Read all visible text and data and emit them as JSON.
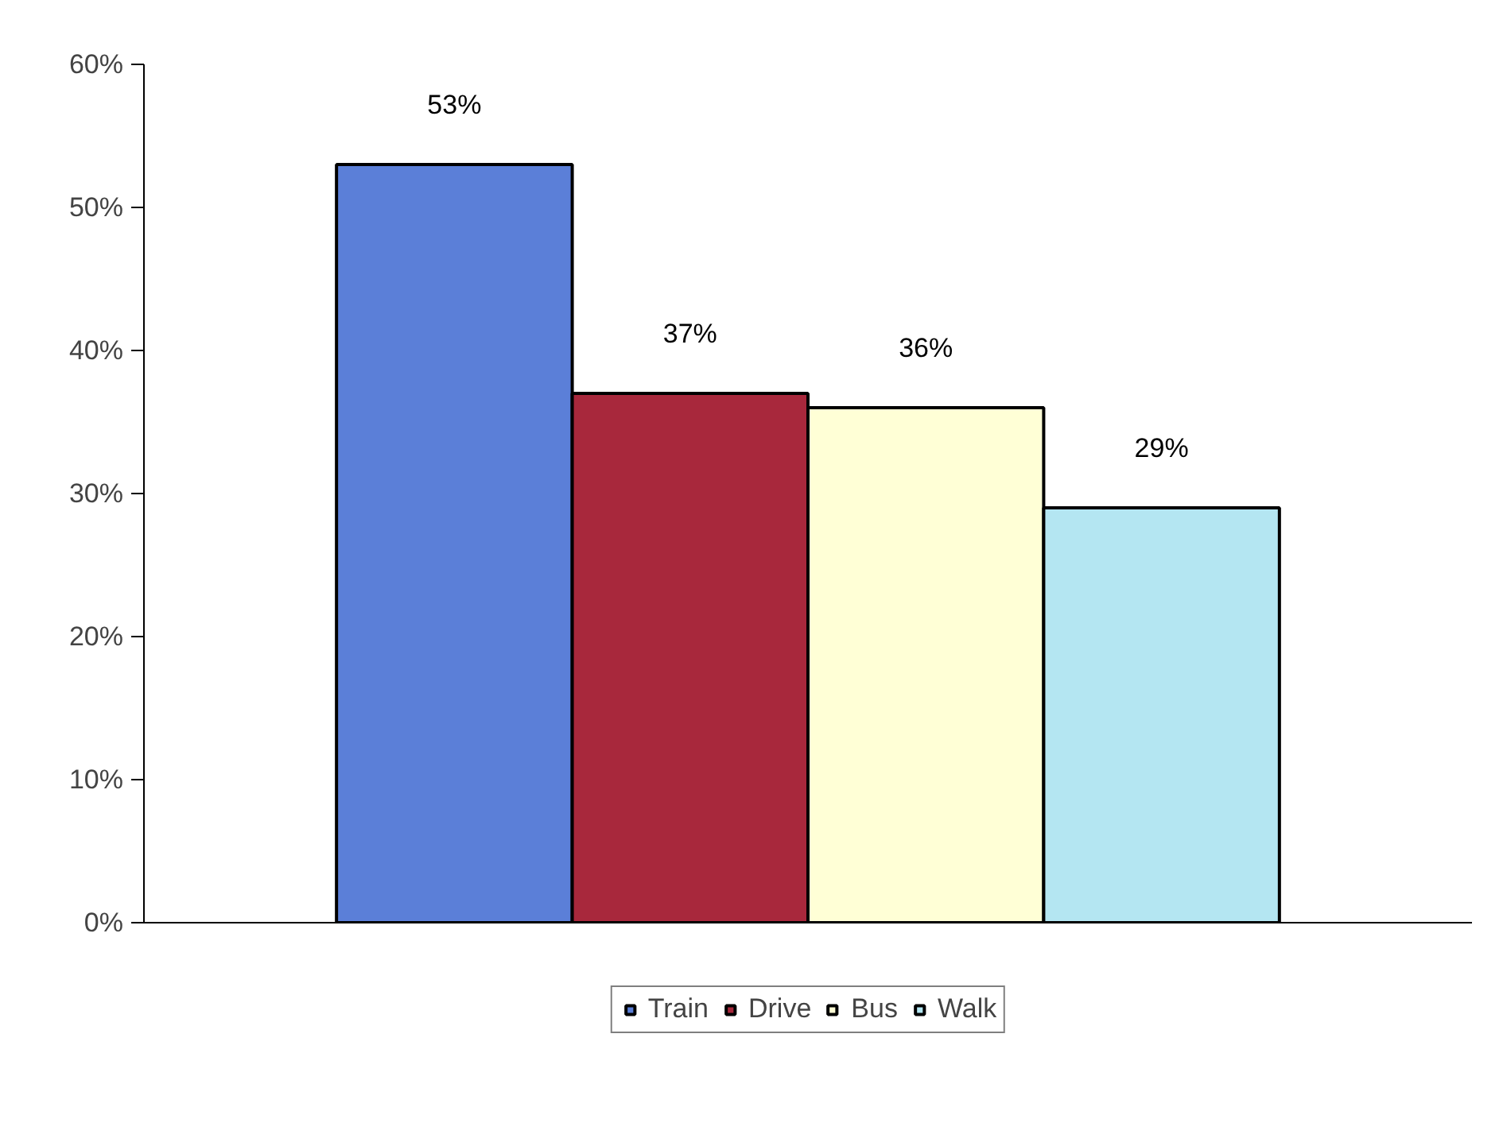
{
  "chart_data": {
    "type": "bar",
    "categories": [
      null
    ],
    "series": [
      {
        "name": "Train",
        "color": "#5b7fd8",
        "values": [
          53
        ],
        "value_labels": [
          "53%"
        ]
      },
      {
        "name": "Drive",
        "color": "#a8283c",
        "values": [
          37
        ],
        "value_labels": [
          "37%"
        ]
      },
      {
        "name": "Bus",
        "color": "#ffffd6",
        "values": [
          36
        ],
        "value_labels": [
          "36%"
        ]
      },
      {
        "name": "Walk",
        "color": "#b4e6f2",
        "values": [
          29
        ],
        "value_labels": [
          "29%"
        ]
      }
    ],
    "ylim": [
      0,
      60
    ],
    "yticks": [
      {
        "value": 0,
        "label": "0%"
      },
      {
        "value": 10,
        "label": "10%"
      },
      {
        "value": 20,
        "label": "20%"
      },
      {
        "value": 30,
        "label": "30%"
      },
      {
        "value": 40,
        "label": "40%"
      },
      {
        "value": 50,
        "label": "50%"
      },
      {
        "value": 60,
        "label": "60%"
      }
    ],
    "grid": false,
    "legend": "bottom"
  }
}
